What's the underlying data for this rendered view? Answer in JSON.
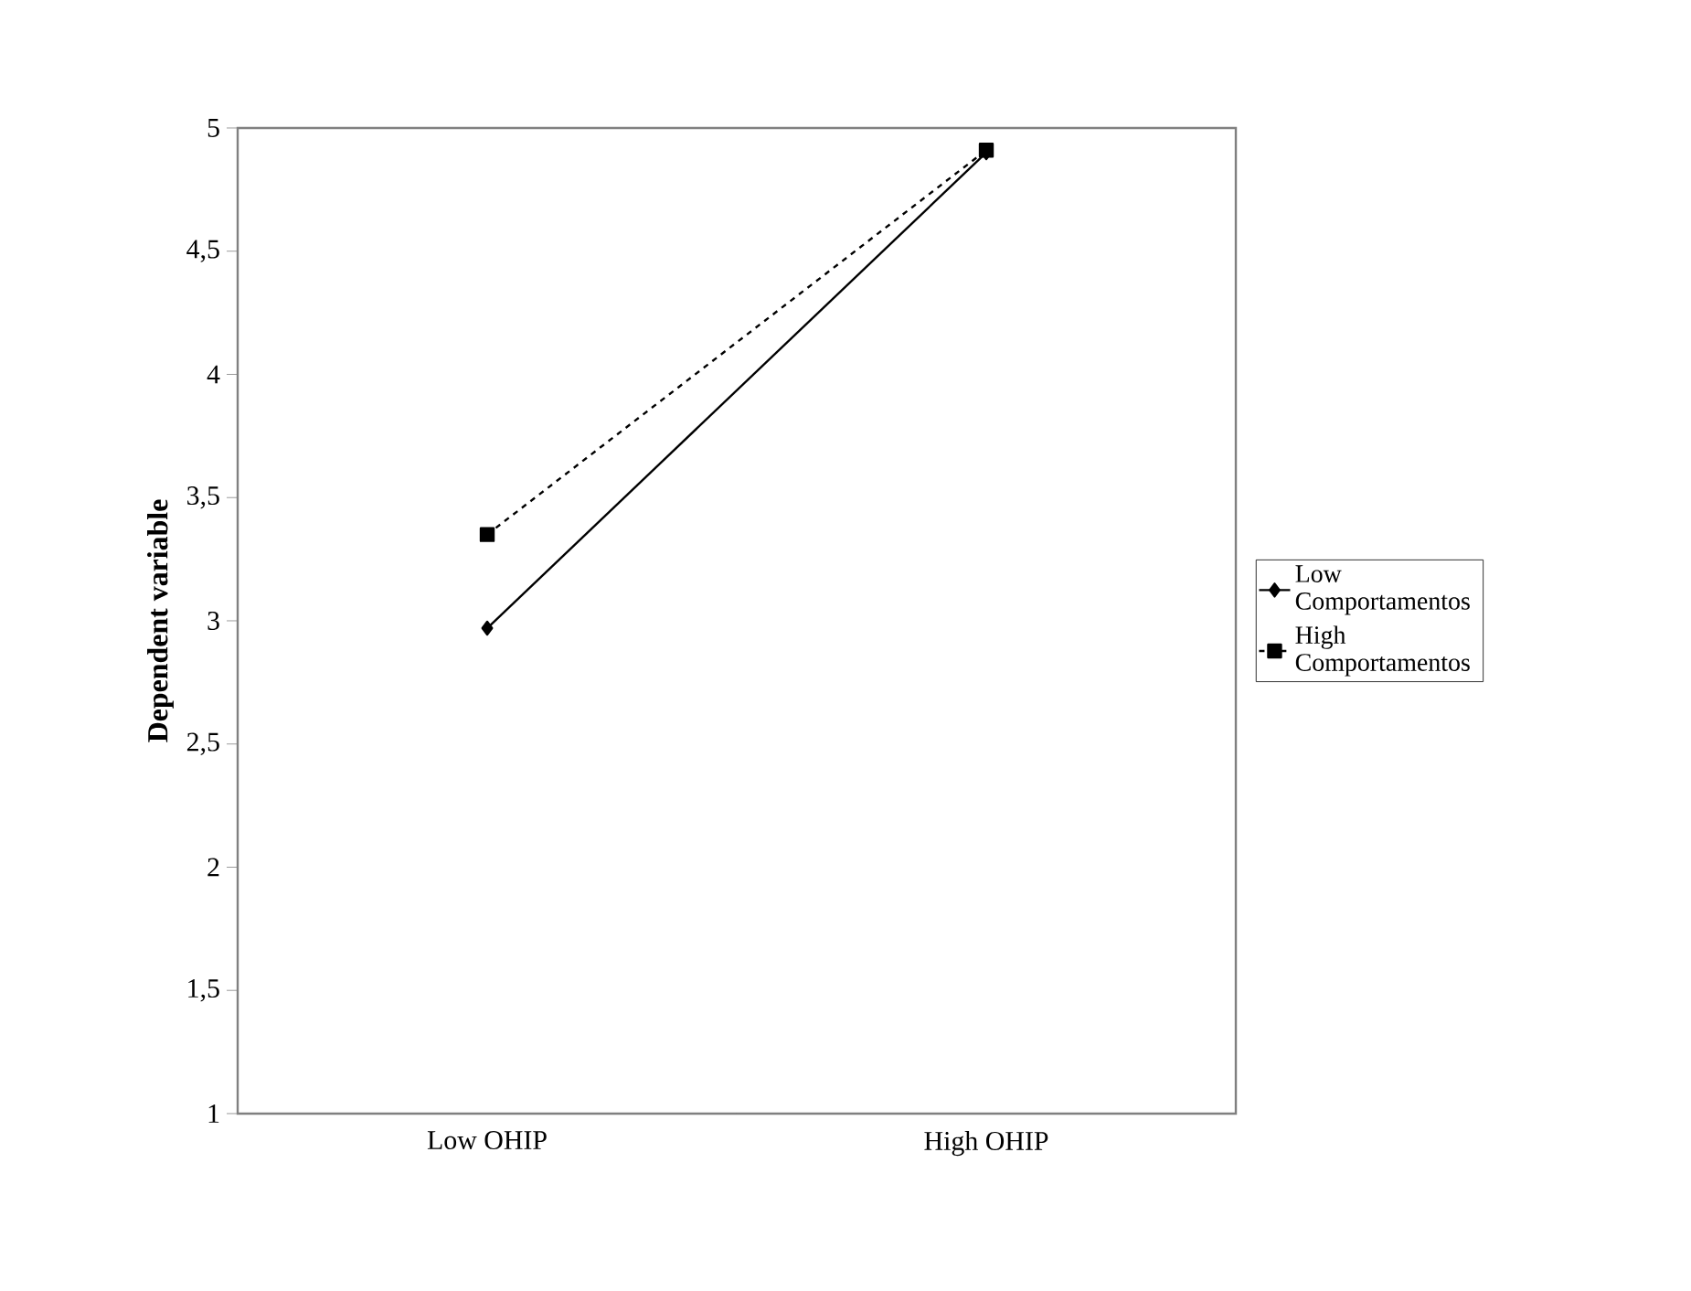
{
  "chart_data": {
    "type": "line",
    "ylabel": "Dependent variable",
    "categories": [
      "Low OHIP",
      "High OHIP"
    ],
    "series": [
      {
        "name": "Low Comportamentos",
        "color": "#000000",
        "values": [
          2.97,
          4.9
        ],
        "marker": "diamond",
        "line_style": "solid"
      },
      {
        "name": "High Comportamentos",
        "color": "#000000",
        "values": [
          3.35,
          4.91
        ],
        "marker": "square",
        "line_style": "dashed"
      }
    ],
    "ylim": [
      1,
      5
    ],
    "yticks": [
      1,
      {
        "value": 1.5,
        "label": "1,5"
      },
      2,
      {
        "value": 2.5,
        "label": "2,5"
      },
      3,
      {
        "value": 3.5,
        "label": "3,5"
      },
      4,
      {
        "value": 4.5,
        "label": "4,5"
      },
      5
    ],
    "grid": false,
    "legend": "right"
  }
}
